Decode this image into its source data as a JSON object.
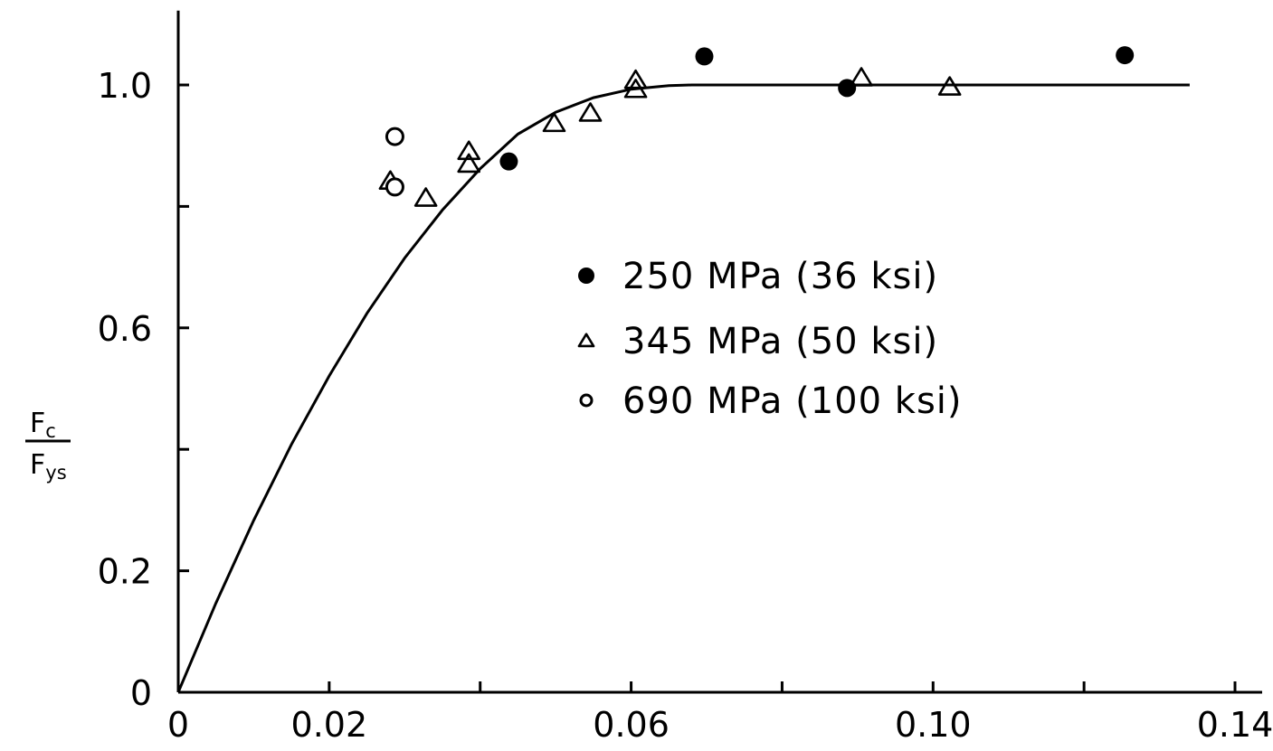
{
  "chart_data": {
    "type": "scatter",
    "xlabel": "",
    "ylabel": {
      "numerator": "F",
      "numerator_sub": "c",
      "denominator": "F",
      "denominator_sub": "ys"
    },
    "xlim": [
      0,
      0.14
    ],
    "ylim": [
      0,
      1.1
    ],
    "x_ticks": [
      0,
      0.02,
      0.04,
      0.06,
      0.08,
      0.1,
      0.12,
      0.14
    ],
    "x_tick_labels": [
      "0",
      "0.02",
      "",
      "0.06",
      "",
      "0.10",
      "",
      "0.14"
    ],
    "y_ticks": [
      0,
      0.2,
      0.4,
      0.6,
      0.8,
      1.0
    ],
    "y_tick_labels": [
      "0",
      "0.2",
      "",
      "0.6",
      "",
      "1.0"
    ],
    "grid": false,
    "legend_position": "center-right",
    "series": [
      {
        "name": "250 MPa  (36  ksi)",
        "marker": "filled-circle",
        "points": [
          [
            0.0438,
            0.874
          ],
          [
            0.0697,
            1.047
          ],
          [
            0.0886,
            0.995
          ],
          [
            0.1254,
            1.049
          ]
        ]
      },
      {
        "name": "345  MPa  (50  ksi)",
        "marker": "open-triangle",
        "points": [
          [
            0.0281,
            0.842
          ],
          [
            0.0328,
            0.814
          ],
          [
            0.0385,
            0.891
          ],
          [
            0.0385,
            0.87
          ],
          [
            0.0498,
            0.937
          ],
          [
            0.0546,
            0.954
          ],
          [
            0.0606,
            1.008
          ],
          [
            0.0606,
            0.993
          ],
          [
            0.0905,
            1.012
          ],
          [
            0.1022,
            0.997
          ]
        ]
      },
      {
        "name": "690  MPa (100  ksi)",
        "marker": "open-circle",
        "points": [
          [
            0.0287,
            0.915
          ],
          [
            0.0287,
            0.832
          ]
        ]
      }
    ],
    "curve": {
      "style": "solid",
      "points": [
        [
          0,
          0
        ],
        [
          0.005,
          0.147
        ],
        [
          0.01,
          0.283
        ],
        [
          0.015,
          0.408
        ],
        [
          0.02,
          0.521
        ],
        [
          0.025,
          0.624
        ],
        [
          0.03,
          0.715
        ],
        [
          0.035,
          0.794
        ],
        [
          0.04,
          0.862
        ],
        [
          0.045,
          0.919
        ],
        [
          0.05,
          0.955
        ],
        [
          0.055,
          0.979
        ],
        [
          0.06,
          0.993
        ],
        [
          0.065,
          0.999
        ],
        [
          0.068,
          1.0
        ],
        [
          0.134,
          1.0
        ]
      ]
    }
  }
}
